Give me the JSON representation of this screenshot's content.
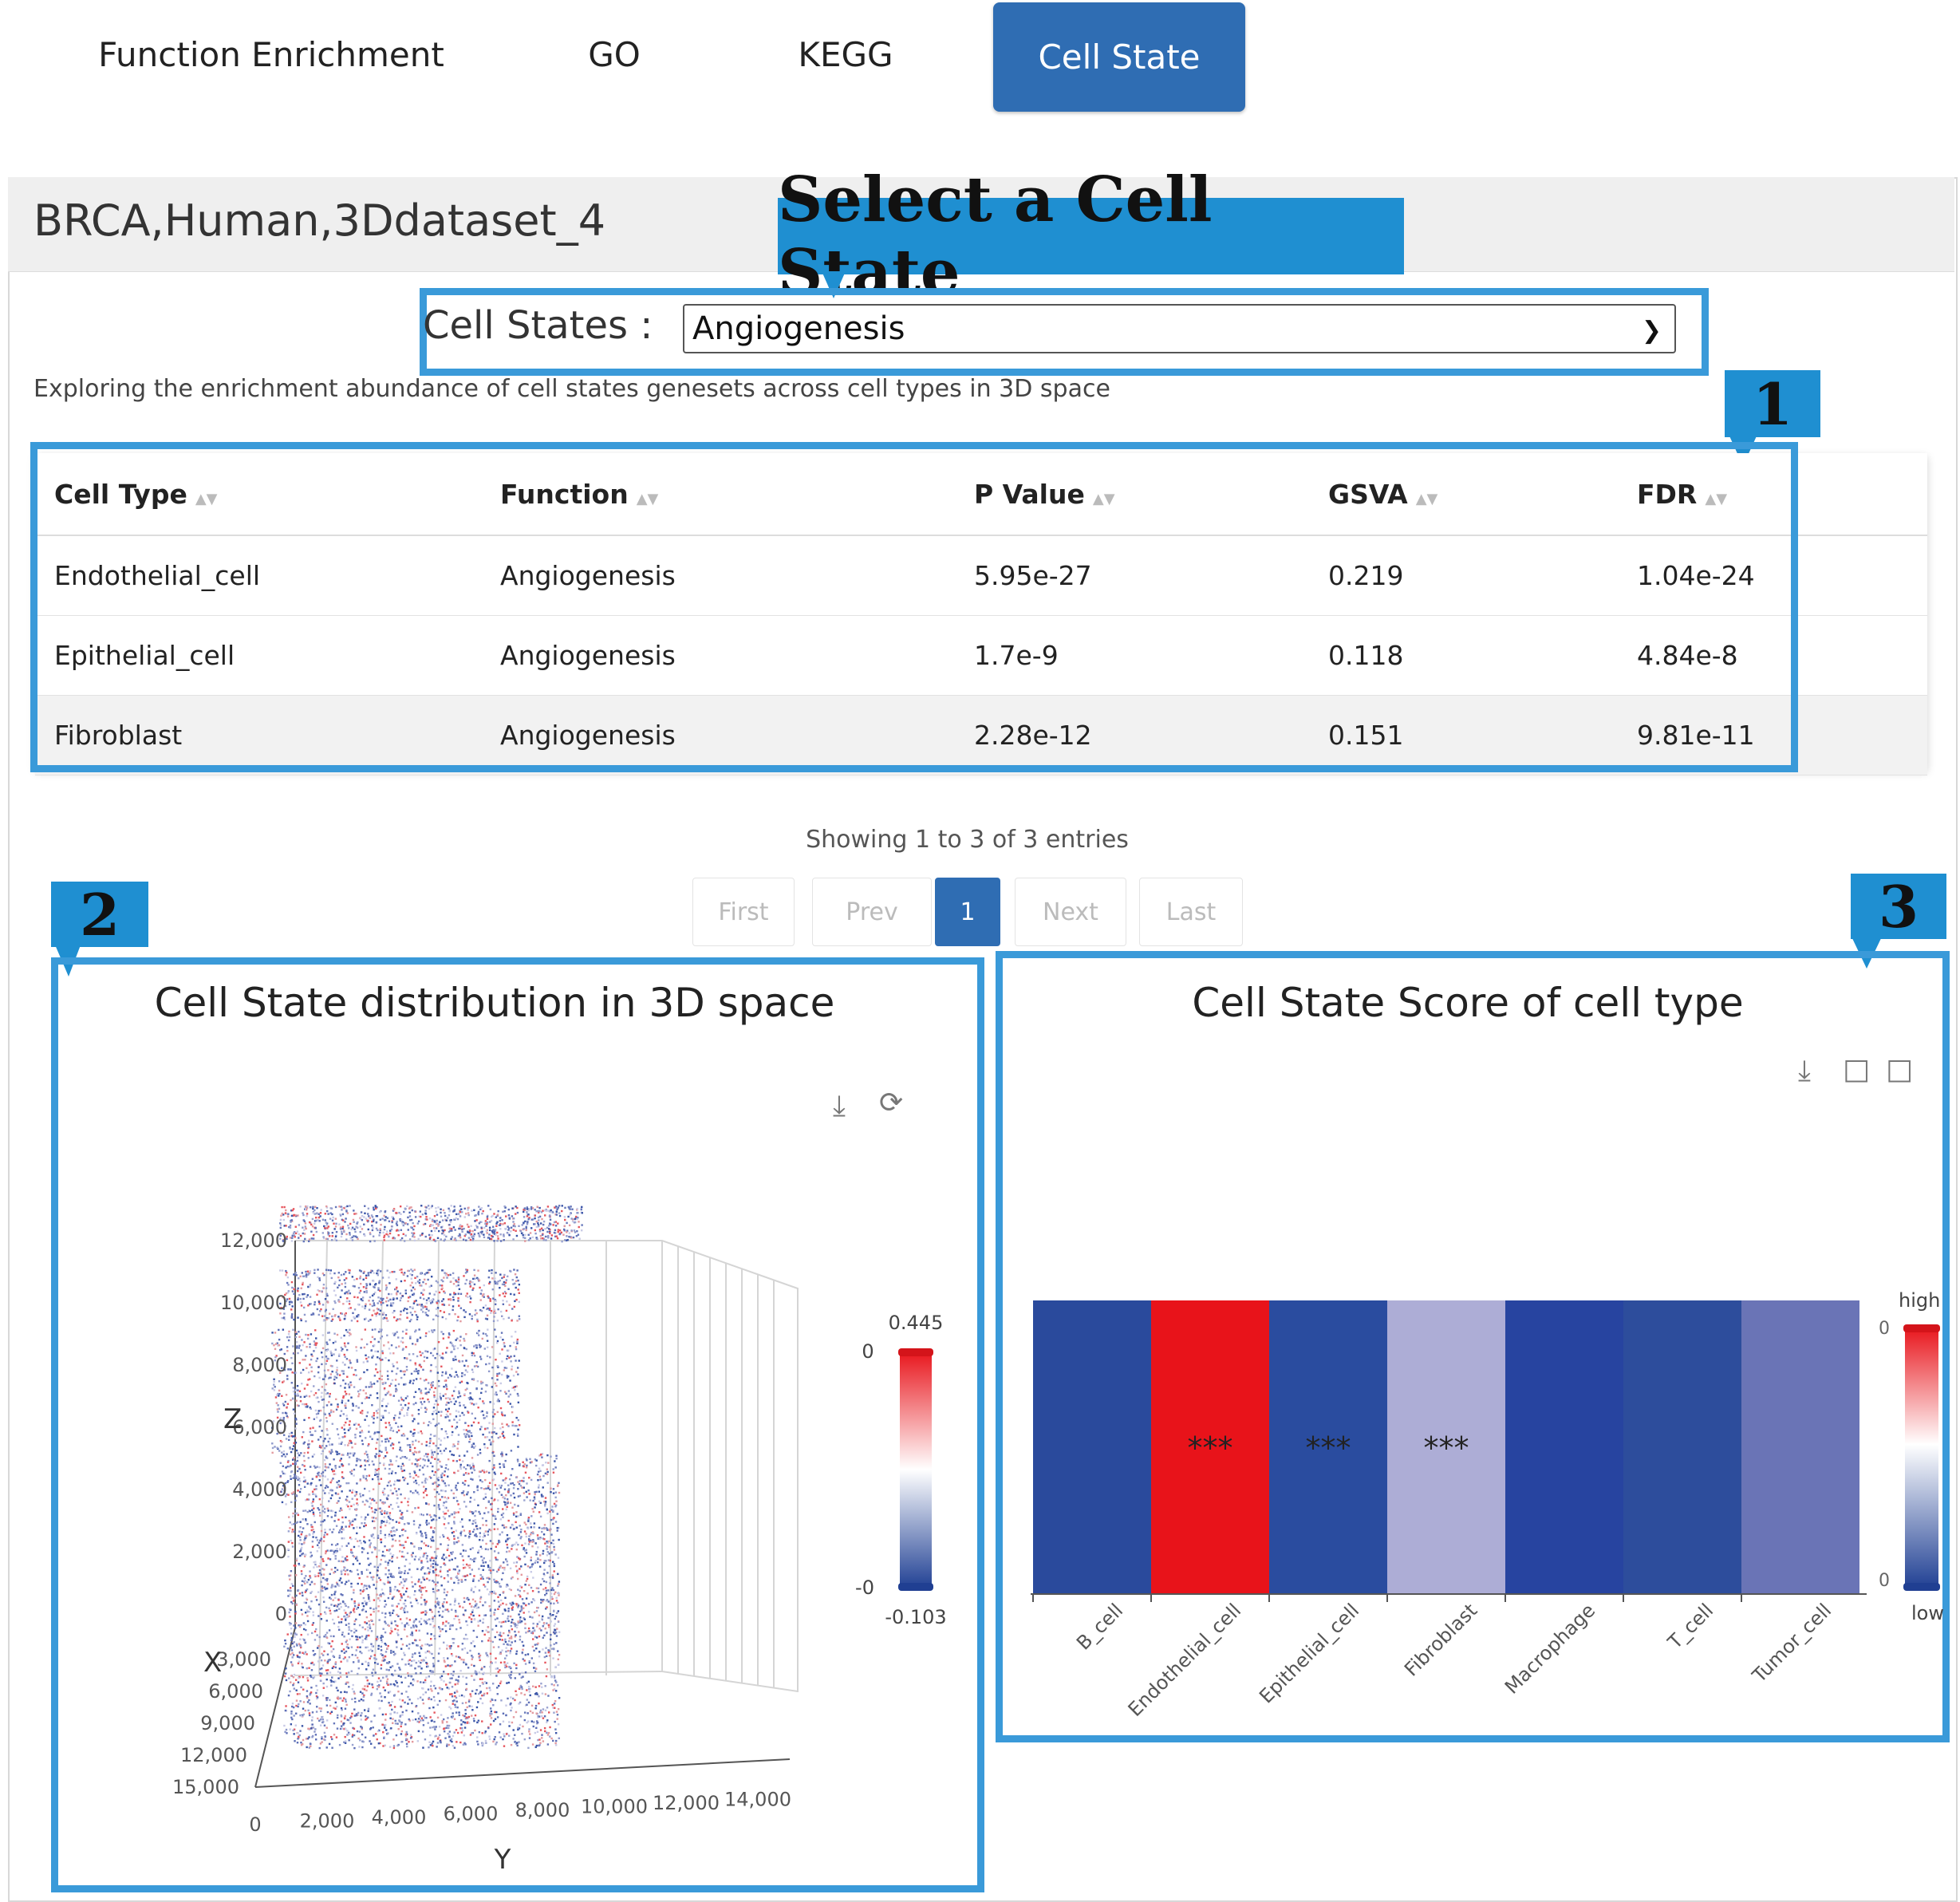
{
  "tabs": [
    {
      "label": "Function Enrichment",
      "active": false
    },
    {
      "label": "GO",
      "active": false
    },
    {
      "label": "KEGG",
      "active": false
    },
    {
      "label": "Cell State",
      "active": true
    }
  ],
  "dataset_title": "BRCA,Human,3Ddataset_4",
  "callouts": {
    "select": "Select a Cell State",
    "one": "1",
    "two": "2",
    "three": "3"
  },
  "cell_state_select": {
    "label": "Cell States :",
    "value": "Angiogenesis"
  },
  "description": "Exploring the enrichment abundance of cell states genesets across cell types in 3D space",
  "table": {
    "columns": [
      "Cell Type",
      "Function",
      "P Value",
      "GSVA",
      "FDR"
    ],
    "rows": [
      [
        "Endothelial_cell",
        "Angiogenesis",
        "5.95e-27",
        "0.219",
        "1.04e-24"
      ],
      [
        "Epithelial_cell",
        "Angiogenesis",
        "1.7e-9",
        "0.118",
        "4.84e-8"
      ],
      [
        "Fibroblast",
        "Angiogenesis",
        "2.28e-12",
        "0.151",
        "9.81e-11"
      ]
    ]
  },
  "pagination": {
    "info": "Showing 1 to 3 of 3 entries",
    "first": "First",
    "prev": "Prev",
    "page": "1",
    "next": "Next",
    "last": "Last"
  },
  "colors": {
    "accent": "#2f6db3",
    "callout": "#1f8fd1",
    "box": "#3a9ad9",
    "high": "#e8131a",
    "low": "#2a4c9f"
  },
  "chart_data": [
    {
      "type": "scatter",
      "title": "Cell State distribution in 3D space",
      "xlabel": "X",
      "ylabel": "Y",
      "zlabel": "Z",
      "x_ticks": [
        "0",
        "3,000",
        "6,000",
        "9,000",
        "12,000",
        "15,000"
      ],
      "y_ticks": [
        "0",
        "2,000",
        "4,000",
        "6,000",
        "8,000",
        "10,000",
        "12,000",
        "14,000"
      ],
      "z_ticks": [
        "0",
        "2,000",
        "4,000",
        "6,000",
        "8,000",
        "10,000",
        "12,000"
      ],
      "visual_map": {
        "max_label": "0.445",
        "min_label": "-0.103",
        "top_tick": "0",
        "bottom_tick": "-0"
      },
      "tools": [
        "download-icon",
        "restore-icon"
      ]
    },
    {
      "type": "heatmap",
      "title": "Cell State Score of cell type",
      "categories": [
        "B_cell",
        "Endothelial_cell",
        "Epithelial_cell",
        "Fibroblast",
        "Macrophage",
        "T_cell",
        "Tumor_cell"
      ],
      "cells": [
        {
          "color": "#2a4a9c",
          "annotation": ""
        },
        {
          "color": "#e8131a",
          "annotation": "***"
        },
        {
          "color": "#2a4c9f",
          "annotation": "***"
        },
        {
          "color": "#adadd6",
          "annotation": "***"
        },
        {
          "color": "#2744a0",
          "annotation": ""
        },
        {
          "color": "#2d4d9c",
          "annotation": ""
        },
        {
          "color": "#6a74b6",
          "annotation": ""
        }
      ],
      "legend": {
        "high_label": "high",
        "low_label": "low",
        "top_tick": "0",
        "bottom_tick": "0"
      },
      "tools": [
        "download-icon",
        "zoom-icon",
        "zoom-reset-icon"
      ]
    }
  ]
}
